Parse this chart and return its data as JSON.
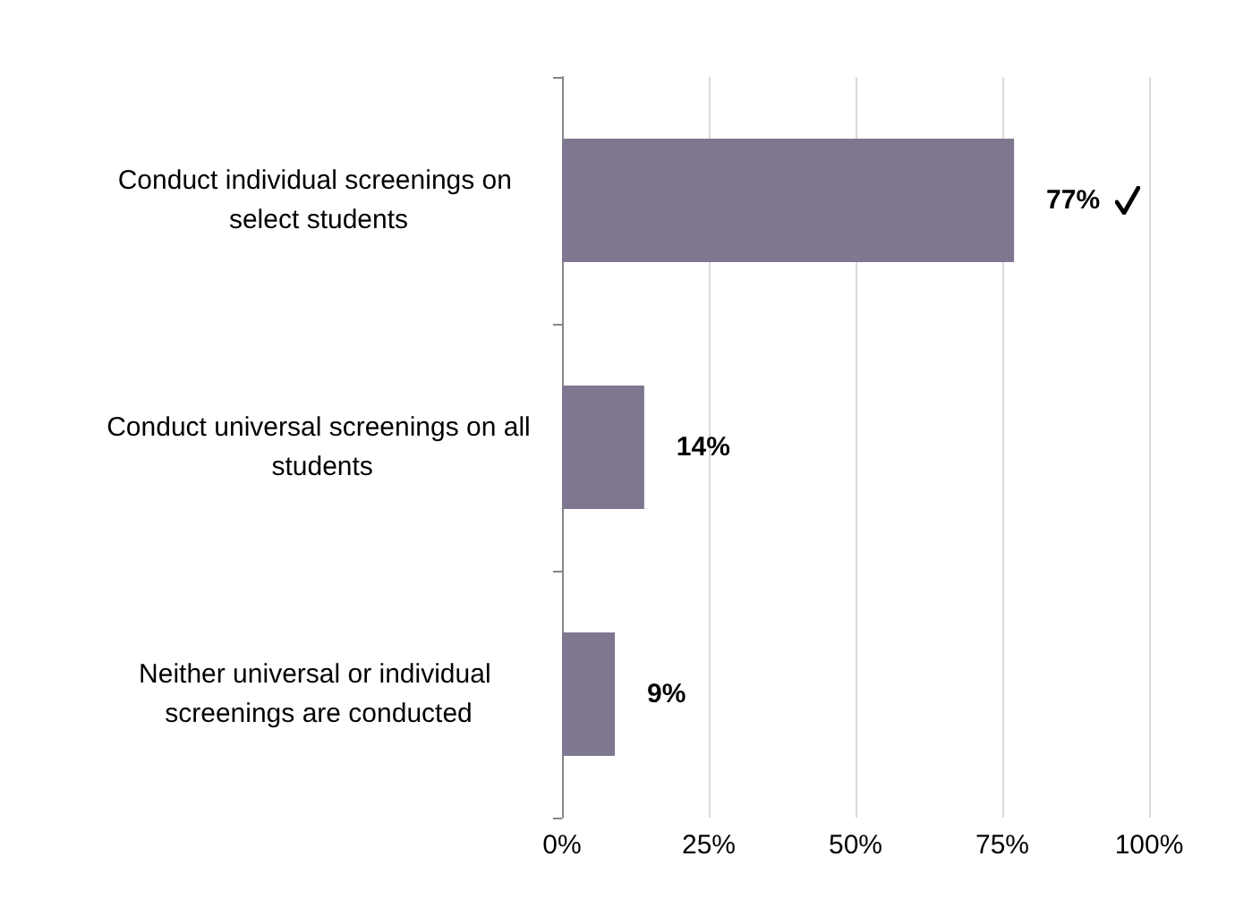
{
  "chart_data": {
    "type": "bar",
    "orientation": "horizontal",
    "categories": [
      "Conduct individual screenings on select students",
      "Conduct universal screenings on all students",
      "Neither universal or individual screenings are conducted"
    ],
    "values": [
      77,
      14,
      9
    ],
    "color": "#7f778f",
    "value_labels": [
      "77%",
      "14%",
      "9%"
    ],
    "xlim": [
      0,
      100
    ],
    "xticks": [
      {
        "value": 0,
        "label": "0%"
      },
      {
        "value": 25,
        "label": "25%"
      },
      {
        "value": 50,
        "label": "50%"
      },
      {
        "value": 75,
        "label": "75%"
      },
      {
        "value": 100,
        "label": "100%"
      }
    ],
    "grid": "x"
  }
}
